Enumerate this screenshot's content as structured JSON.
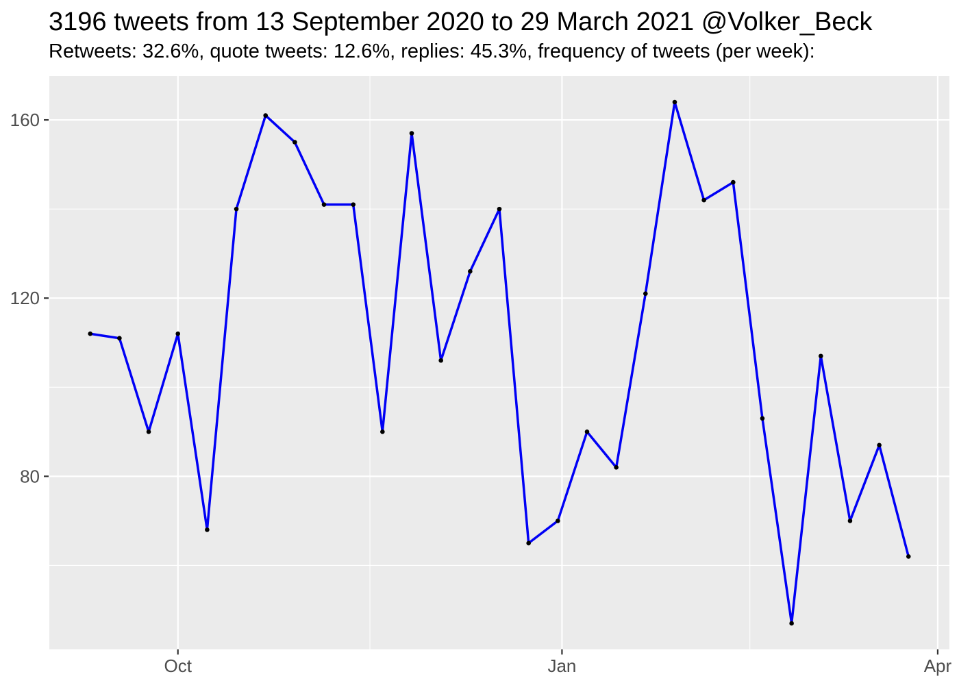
{
  "title": "3196 tweets from 13 September 2020 to 29 March 2021 @Volker_Beck",
  "subtitle": "Retweets: 32.6%, quote tweets: 12.6%, replies: 45.3%, frequency of tweets (per week):",
  "chart_data": {
    "type": "line",
    "series_name": "frequency of tweets (per week)",
    "x": [
      "2020-09-10",
      "2020-09-17",
      "2020-09-24",
      "2020-10-01",
      "2020-10-08",
      "2020-10-15",
      "2020-10-22",
      "2020-10-29",
      "2020-11-05",
      "2020-11-12",
      "2020-11-19",
      "2020-11-26",
      "2020-12-03",
      "2020-12-10",
      "2020-12-17",
      "2020-12-24",
      "2020-12-31",
      "2021-01-07",
      "2021-01-14",
      "2021-01-21",
      "2021-01-28",
      "2021-02-04",
      "2021-02-11",
      "2021-02-18",
      "2021-02-25",
      "2021-03-04",
      "2021-03-11",
      "2021-03-18",
      "2021-03-25"
    ],
    "values": [
      112,
      111,
      90,
      112,
      68,
      140,
      161,
      155,
      141,
      141,
      90,
      157,
      106,
      126,
      140,
      65,
      70,
      90,
      82,
      121,
      164,
      142,
      146,
      93,
      47,
      107,
      70,
      87,
      62
    ],
    "xlabel": "",
    "ylabel": "",
    "y_ticks": [
      160,
      120,
      80
    ],
    "y_minor_ticks": [
      140,
      100,
      60
    ],
    "x_ticks": [
      {
        "label": "Oct",
        "date": "2020-10-01"
      },
      {
        "label": "Jan",
        "date": "2021-01-01"
      },
      {
        "label": "Apr",
        "date": "2021-04-01"
      }
    ],
    "x_minor_dates": [
      "2020-11-16",
      "2021-02-15"
    ],
    "ylim": [
      41.15,
      169.85
    ],
    "xlim_days_pad": 9.8,
    "grid": "major+minor",
    "legend": "none",
    "colors": {
      "line": "#0000f5",
      "point": "#000000",
      "panel_bg": "#ebebeb",
      "grid": "#ffffff",
      "axis_text": "#4d4d4d",
      "tick_mark": "#333333",
      "title_text": "#000000"
    }
  }
}
